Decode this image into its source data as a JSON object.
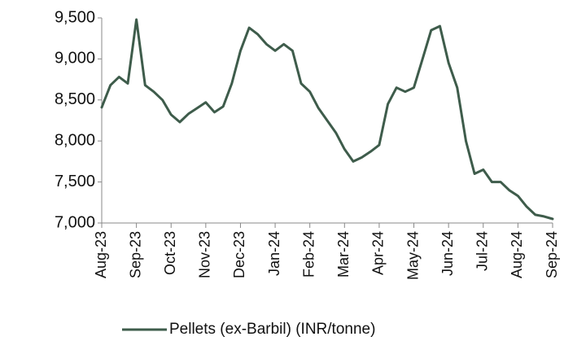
{
  "chart_data": {
    "type": "line",
    "categories": [
      "Aug-23",
      null,
      null,
      null,
      "Sep-23",
      null,
      null,
      null,
      "Oct-23",
      null,
      null,
      null,
      "Nov-23",
      null,
      null,
      null,
      "Dec-23",
      null,
      null,
      null,
      "Jan-24",
      null,
      null,
      null,
      "Feb-24",
      null,
      null,
      null,
      "Mar-24",
      null,
      null,
      null,
      "Apr-24",
      null,
      null,
      null,
      "May-24",
      null,
      null,
      null,
      "Jun-24",
      null,
      null,
      null,
      "Jul-24",
      null,
      null,
      null,
      "Aug-24",
      null,
      null,
      null,
      "Sep-24"
    ],
    "series": [
      {
        "name": "Pellets (ex-Barbil) (INR/tonne)",
        "color": "#3e5c4b",
        "values": [
          8410,
          8680,
          8780,
          8700,
          9480,
          8680,
          8600,
          8500,
          8320,
          8230,
          8330,
          8400,
          8470,
          8350,
          8420,
          8700,
          9100,
          9380,
          9300,
          9180,
          9100,
          9180,
          9100,
          8700,
          8600,
          8400,
          8250,
          8100,
          7900,
          7750,
          7800,
          7870,
          7950,
          8450,
          8650,
          8600,
          8650,
          9000,
          9350,
          9400,
          8950,
          8650,
          8000,
          7600,
          7650,
          7500,
          7500,
          7400,
          7330,
          7200,
          7100,
          7080,
          7050
        ]
      }
    ],
    "ylim": [
      7000,
      9500
    ],
    "yticks": [
      {
        "value": 7000,
        "label": "7,000"
      },
      {
        "value": 7500,
        "label": "7,500"
      },
      {
        "value": 8000,
        "label": "8,000"
      },
      {
        "value": 8500,
        "label": "8,500"
      },
      {
        "value": 9000,
        "label": "9,000"
      },
      {
        "value": 9500,
        "label": "9,500"
      }
    ],
    "legend": "bottom"
  }
}
